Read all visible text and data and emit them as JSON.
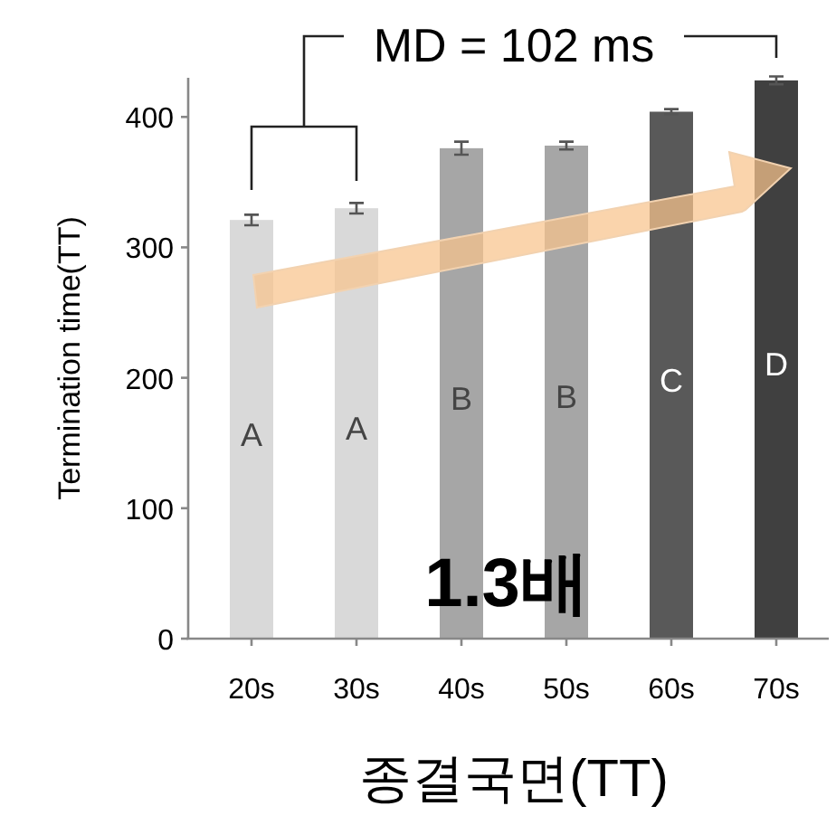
{
  "chart_data": {
    "type": "bar",
    "ylabel": "Termination time(TT)",
    "xlabel": "종결국면(TT)",
    "categories": [
      "20s",
      "30s",
      "40s",
      "50s",
      "60s",
      "70s"
    ],
    "values": [
      321,
      330,
      376,
      378,
      404,
      428
    ],
    "errors": [
      4,
      4,
      5,
      3,
      2,
      3
    ],
    "colors": [
      "#d9d9d9",
      "#d9d9d9",
      "#a6a6a6",
      "#a6a6a6",
      "#595959",
      "#404040"
    ],
    "ylim": [
      0,
      430
    ],
    "yticks": [
      0,
      100,
      200,
      300,
      400
    ],
    "grid": false,
    "annotations": [
      "MD = 102 ms",
      "1.3배",
      "A",
      "A",
      "B",
      "B",
      "C",
      "D"
    ]
  }
}
